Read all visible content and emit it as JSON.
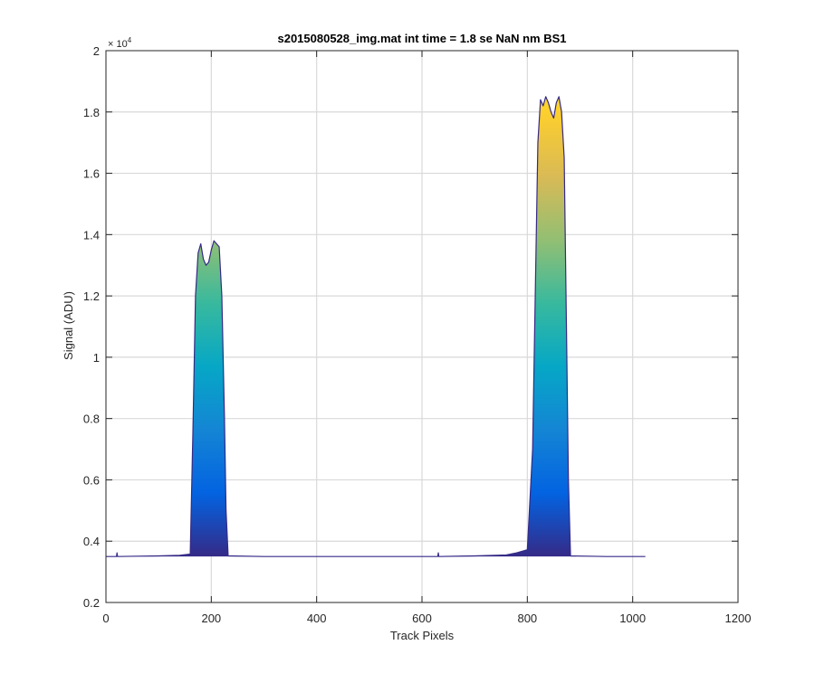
{
  "chart_data": {
    "type": "area",
    "title": "s2015080528_img.mat int time = 1.8 se  NaN nm BS1",
    "xlabel": "Track Pixels",
    "ylabel": "Signal (ADU)",
    "y_exponent": "× 10",
    "y_exponent_power": "4",
    "xlim": [
      0,
      1200
    ],
    "ylim": [
      0.2,
      2.0
    ],
    "y_scale_factor": 10000,
    "x_ticks": [
      0,
      200,
      400,
      600,
      800,
      1000,
      1200
    ],
    "x_tick_labels": [
      "0",
      "200",
      "400",
      "600",
      "800",
      "1000",
      "1200"
    ],
    "y_ticks": [
      0.2,
      0.4,
      0.6,
      0.8,
      1.0,
      1.2,
      1.4,
      1.6,
      1.8,
      2.0
    ],
    "y_tick_labels": [
      "0.2",
      "0.4",
      "0.6",
      "0.8",
      "1",
      "1.2",
      "1.4",
      "1.6",
      "1.8",
      "2"
    ],
    "grid": true,
    "colormap": "parula",
    "colormap_stops": [
      "#352a87",
      "#0363e1",
      "#1485d4",
      "#06a7c6",
      "#38b99e",
      "#92bf73",
      "#d9ba56",
      "#fcce2e",
      "#f9fb0e"
    ],
    "series": [
      {
        "x": [
          0,
          20,
          21,
          22,
          60,
          100,
          140,
          160,
          165,
          170,
          175,
          180,
          185,
          190,
          195,
          200,
          205,
          210,
          215,
          220,
          225,
          228,
          232,
          300,
          400,
          500,
          600,
          630,
          631,
          632,
          700,
          760,
          780,
          800,
          810,
          815,
          820,
          825,
          830,
          835,
          840,
          845,
          850,
          855,
          860,
          865,
          870,
          875,
          878,
          882,
          950,
          1000,
          1024
        ],
        "y": [
          0.35,
          0.35,
          0.362,
          0.35,
          0.351,
          0.352,
          0.354,
          0.358,
          0.75,
          1.2,
          1.34,
          1.37,
          1.32,
          1.3,
          1.31,
          1.35,
          1.38,
          1.37,
          1.36,
          1.2,
          0.8,
          0.5,
          0.352,
          0.35,
          0.35,
          0.35,
          0.35,
          0.35,
          0.362,
          0.35,
          0.352,
          0.355,
          0.362,
          0.372,
          0.7,
          1.2,
          1.7,
          1.84,
          1.82,
          1.85,
          1.83,
          1.8,
          1.78,
          1.83,
          1.85,
          1.8,
          1.65,
          1.0,
          0.6,
          0.352,
          0.35,
          0.35,
          0.35
        ]
      }
    ]
  }
}
